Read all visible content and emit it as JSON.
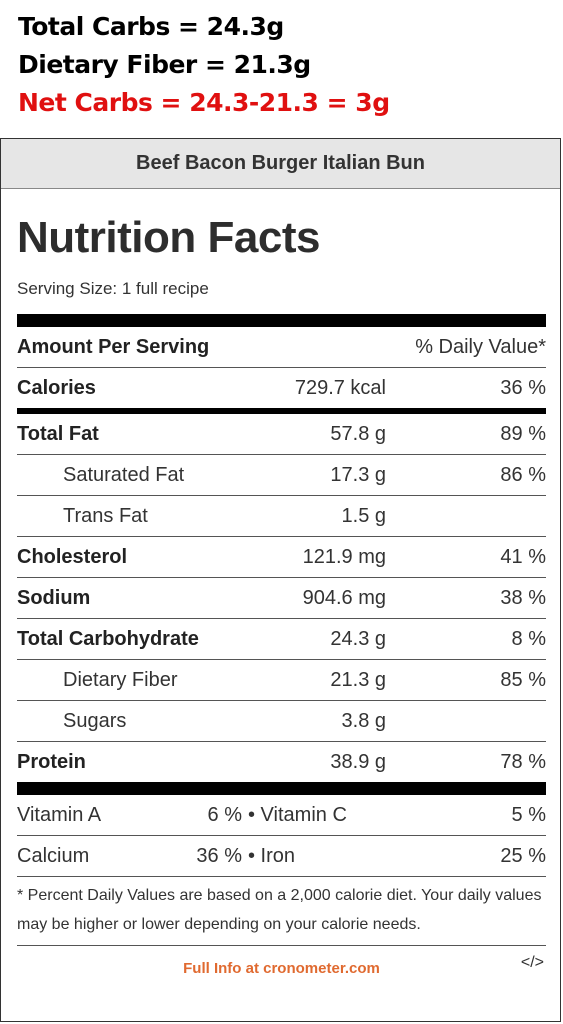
{
  "summary": {
    "total_carbs": "Total Carbs = 24.3g",
    "dietary_fiber": "Dietary Fiber = 21.3g",
    "net_carbs": "Net Carbs = 24.3-21.3 = 3g"
  },
  "card": {
    "title": "Beef Bacon Burger Italian Bun",
    "heading": "Nutrition Facts",
    "serving": "Serving Size: 1 full recipe",
    "amount_per_serving": "Amount Per Serving",
    "daily_value_header": "% Daily Value*",
    "calories": {
      "name": "Calories",
      "amount": "729.7 kcal",
      "dv": "36 %"
    },
    "nutrients": [
      {
        "name": "Total Fat",
        "amount": "57.8 g",
        "dv": "89 %"
      },
      {
        "name": "Saturated Fat",
        "amount": "17.3 g",
        "dv": "86 %"
      },
      {
        "name": "Trans Fat",
        "amount": "1.5 g",
        "dv": ""
      },
      {
        "name": "Cholesterol",
        "amount": "121.9 mg",
        "dv": "41 %"
      },
      {
        "name": "Sodium",
        "amount": "904.6 mg",
        "dv": "38 %"
      },
      {
        "name": "Total Carbohydrate",
        "amount": "24.3 g",
        "dv": "8 %"
      },
      {
        "name": "Dietary Fiber",
        "amount": "21.3 g",
        "dv": "85 %"
      },
      {
        "name": "Sugars",
        "amount": "3.8 g",
        "dv": ""
      },
      {
        "name": "Protein",
        "amount": "38.9 g",
        "dv": "78 %"
      }
    ],
    "vitamins": [
      {
        "name1": "Vitamin A",
        "val1": "6 %",
        "name2": "• Vitamin C",
        "val2": "5 %"
      },
      {
        "name1": "Calcium",
        "val1": "36 %",
        "name2": "• Iron",
        "val2": "25 %"
      }
    ],
    "footnote": "* Percent Daily Values are based on a 2,000 calorie diet. Your daily values may be higher or lower depending on your calorie needs.",
    "full_info_link": "Full Info at cronometer.com",
    "embed_label": "</>"
  },
  "colors": {
    "net_carbs": "#e01010",
    "link": "#e06a30",
    "title_bar": "#e6e6e6"
  }
}
